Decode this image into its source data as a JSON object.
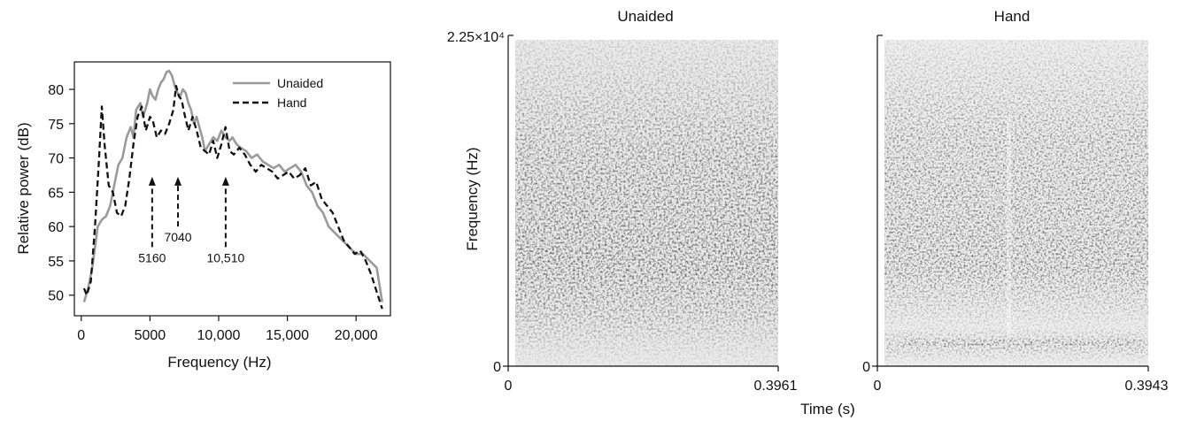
{
  "chart_data": [
    {
      "type": "line",
      "title": "",
      "xlabel": "Frequency (Hz)",
      "ylabel": "Relative power (dB)",
      "xlim": [
        -500,
        22500
      ],
      "ylim": [
        47,
        84
      ],
      "xticks": [
        0,
        5000,
        10000,
        15000,
        20000
      ],
      "xtick_labels": [
        "0",
        "5000",
        "10,000",
        "15,000",
        "20,000"
      ],
      "yticks": [
        50,
        55,
        60,
        65,
        70,
        75,
        80
      ],
      "ytick_labels": [
        "50",
        "55",
        "60",
        "65",
        "70",
        "75",
        "80"
      ],
      "legend_position": "top-right",
      "series": [
        {
          "name": "Unaided",
          "style": "solid",
          "color": "#9a9a9a",
          "x": [
            200,
            500,
            800,
            1000,
            1200,
            1500,
            1800,
            2100,
            2400,
            2700,
            3000,
            3300,
            3600,
            3800,
            4000,
            4300,
            4500,
            4800,
            5000,
            5200,
            5400,
            5600,
            5800,
            6000,
            6200,
            6400,
            6600,
            6800,
            7000,
            7200,
            7400,
            7600,
            7800,
            8000,
            8200,
            8400,
            8600,
            8800,
            9000,
            9300,
            9600,
            9900,
            10200,
            10500,
            10800,
            11000,
            11300,
            11600,
            12000,
            12400,
            12800,
            13200,
            13600,
            14000,
            14400,
            14800,
            15200,
            15600,
            16000,
            16400,
            16800,
            17200,
            17600,
            18000,
            18500,
            19000,
            19500,
            20000,
            20500,
            21000,
            21500,
            21900
          ],
          "y": [
            49,
            51,
            54,
            57,
            60,
            61,
            61.5,
            63,
            66,
            69,
            70,
            73,
            74.5,
            73,
            77,
            78,
            76,
            78,
            80,
            79,
            78.5,
            80,
            81,
            81.5,
            82.5,
            82.7,
            82,
            80.5,
            79.5,
            79,
            80,
            79.5,
            78,
            77,
            75,
            76,
            74.5,
            73,
            71,
            72,
            73,
            72.5,
            74,
            73,
            72.5,
            73,
            72,
            71.5,
            71,
            70,
            70.5,
            69.5,
            69,
            68.5,
            69,
            68,
            68.5,
            69,
            68,
            66,
            65,
            63,
            62,
            60,
            59,
            58,
            57,
            56,
            56,
            55,
            54,
            49
          ]
        },
        {
          "name": "Hand",
          "style": "dashed",
          "color": "#111111",
          "x": [
            200,
            400,
            700,
            1000,
            1300,
            1500,
            1700,
            2000,
            2300,
            2600,
            2900,
            3200,
            3500,
            3800,
            4100,
            4400,
            4700,
            5000,
            5200,
            5500,
            5800,
            6100,
            6400,
            6700,
            6900,
            7100,
            7300,
            7500,
            7800,
            8100,
            8400,
            8700,
            9000,
            9300,
            9600,
            9900,
            10200,
            10500,
            10800,
            11100,
            11500,
            11900,
            12300,
            12700,
            13100,
            13500,
            13900,
            14300,
            14700,
            15100,
            15500,
            15900,
            16300,
            16700,
            17100,
            17500,
            17900,
            18300,
            18700,
            19100,
            19500,
            19900,
            20300,
            20700,
            21100,
            21500,
            21900
          ],
          "y": [
            51,
            50,
            52,
            60,
            70,
            77.5,
            72,
            66,
            65,
            62,
            61.5,
            63,
            67,
            72,
            76,
            77.5,
            74,
            76,
            75.5,
            73,
            74,
            73.5,
            75,
            77,
            80.5,
            79,
            78.5,
            76.5,
            74,
            76,
            74,
            71.5,
            71,
            70.5,
            72.5,
            70,
            72,
            74.5,
            71,
            70.5,
            71.5,
            70.5,
            69,
            68,
            69,
            68.5,
            68,
            67,
            67.5,
            68,
            67,
            67.5,
            68.5,
            66,
            66.5,
            64,
            63,
            62,
            60,
            58,
            57,
            56,
            56.5,
            55,
            53,
            50.5,
            48
          ]
        }
      ],
      "annotations": [
        {
          "label": "5160",
          "x": 5160,
          "y_from": 57,
          "y_to": 67
        },
        {
          "label": "7040",
          "x": 7040,
          "y_from": 60,
          "y_to": 67
        },
        {
          "label": "10,510",
          "x": 10510,
          "y_from": 57,
          "y_to": 67
        }
      ]
    },
    {
      "type": "heatmap",
      "title": "Unaided",
      "ylabel": "Frequency (Hz)",
      "xlim": [
        0,
        0.3961
      ],
      "ylim": [
        0,
        22500
      ],
      "x_tick_labels": [
        "0",
        "0.3961"
      ],
      "y_tick_labels": [
        "0",
        "2.25×10⁴"
      ],
      "colormap": "grayscale"
    },
    {
      "type": "heatmap",
      "title": "Hand",
      "xlabel": "Time (s)",
      "xlim": [
        0,
        0.3943
      ],
      "ylim": [
        0,
        22500
      ],
      "x_tick_labels": [
        "0",
        "0.3943"
      ],
      "y_tick_labels": [
        "0"
      ],
      "colormap": "grayscale"
    }
  ]
}
